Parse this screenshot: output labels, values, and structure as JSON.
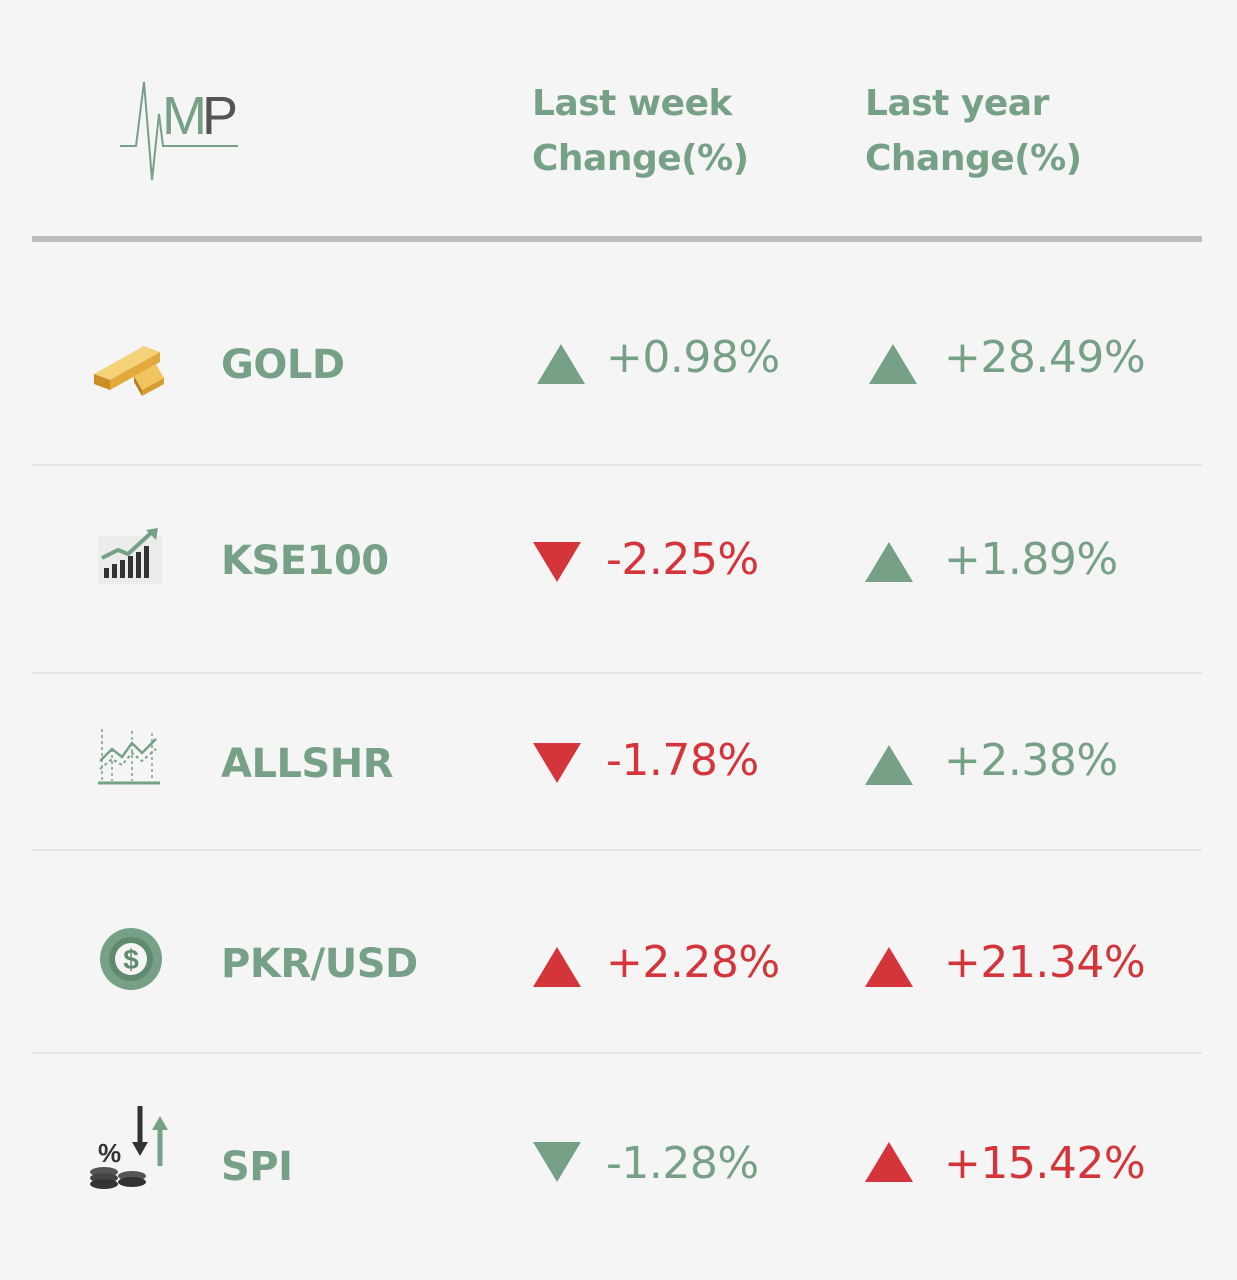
{
  "logo": {
    "text": "MP",
    "icon": "heartbeat-logo-icon"
  },
  "header": {
    "week_line1": "Last week",
    "week_line2": "Change(%)",
    "year_line1": "Last year",
    "year_line2": "Change(%)"
  },
  "colors": {
    "green": "#77a186",
    "red": "#d3353a",
    "gold": "#e2b64e"
  },
  "rows": [
    {
      "name": "GOLD",
      "icon": "gold-bars-icon",
      "week": {
        "value": "+0.98%",
        "direction": "up",
        "color": "green"
      },
      "year": {
        "value": "+28.49%",
        "direction": "up",
        "color": "green"
      }
    },
    {
      "name": "KSE100",
      "icon": "bar-chart-trend-icon",
      "week": {
        "value": "-2.25%",
        "direction": "down",
        "color": "red"
      },
      "year": {
        "value": "+1.89%",
        "direction": "up",
        "color": "green"
      }
    },
    {
      "name": "ALLSHR",
      "icon": "line-chart-icon",
      "week": {
        "value": "-1.78%",
        "direction": "down",
        "color": "red"
      },
      "year": {
        "value": "+2.38%",
        "direction": "up",
        "color": "green"
      }
    },
    {
      "name": "PKR/USD",
      "icon": "dollar-coin-icon",
      "week": {
        "value": "+2.28%",
        "direction": "up",
        "color": "red"
      },
      "year": {
        "value": "+21.34%",
        "direction": "up",
        "color": "red"
      }
    },
    {
      "name": "SPI",
      "icon": "percent-coins-arrows-icon",
      "week": {
        "value": "-1.28%",
        "direction": "down",
        "color": "green"
      },
      "year": {
        "value": "+15.42%",
        "direction": "up",
        "color": "red"
      }
    }
  ]
}
